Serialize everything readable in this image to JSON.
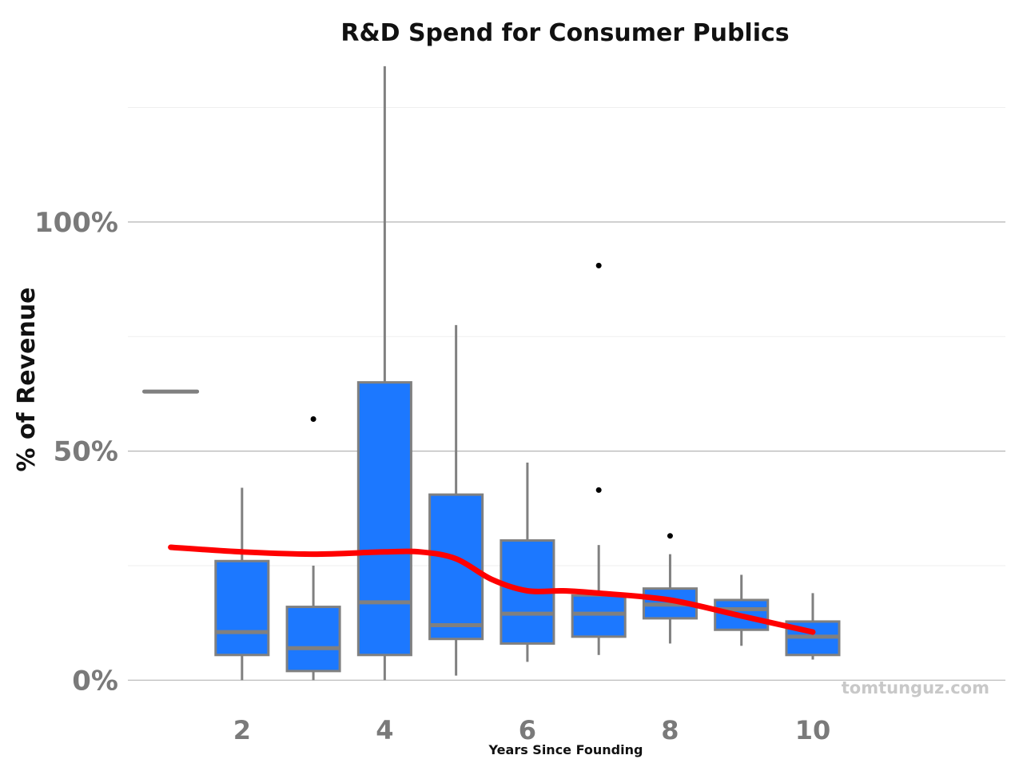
{
  "chart_data": {
    "type": "boxplot",
    "title": "R&D Spend for Consumer Publics",
    "xlabel": "Years Since Founding",
    "ylabel": "% of Revenue",
    "watermark": "tomtunguz.com",
    "x_ticks": [
      2,
      4,
      6,
      8,
      10
    ],
    "y_ticks": [
      0,
      50,
      100
    ],
    "y_tick_labels": [
      "0%",
      "50%",
      "100%"
    ],
    "xlim": [
      0.4,
      12.7
    ],
    "ylim": [
      -5,
      138
    ],
    "grid": "horizontal",
    "colors": {
      "box_fill": "#1c78ff",
      "box_stroke": "#808080",
      "trend": "#ff0000",
      "grid_major": "#b4b4b4",
      "grid_minor": "#efefef"
    },
    "boxes": [
      {
        "year": 1,
        "min": 63,
        "q1": 63,
        "median": 63,
        "q3": 63,
        "max": 63,
        "outliers": []
      },
      {
        "year": 2,
        "min": 0,
        "q1": 5.5,
        "median": 10.5,
        "q3": 26,
        "max": 42,
        "outliers": []
      },
      {
        "year": 3,
        "min": 0,
        "q1": 2,
        "median": 7,
        "q3": 16,
        "max": 25,
        "outliers": [
          57
        ]
      },
      {
        "year": 4,
        "min": 0,
        "q1": 5.5,
        "median": 17,
        "q3": 65,
        "max": 134,
        "outliers": []
      },
      {
        "year": 5,
        "min": 1,
        "q1": 9,
        "median": 12,
        "q3": 40.5,
        "max": 77.5,
        "outliers": []
      },
      {
        "year": 6,
        "min": 4,
        "q1": 8,
        "median": 14.5,
        "q3": 30.5,
        "max": 47.5,
        "outliers": []
      },
      {
        "year": 7,
        "min": 5.5,
        "q1": 9.5,
        "median": 14.5,
        "q3": 18.5,
        "max": 29.5,
        "outliers": [
          41.5,
          90.5
        ]
      },
      {
        "year": 8,
        "min": 8,
        "q1": 13.5,
        "median": 16.5,
        "q3": 20,
        "max": 27.5,
        "outliers": [
          31.5
        ]
      },
      {
        "year": 9,
        "min": 7.5,
        "q1": 11,
        "median": 15.5,
        "q3": 17.5,
        "max": 23,
        "outliers": []
      },
      {
        "year": 10,
        "min": 4.5,
        "q1": 5.5,
        "median": 9.5,
        "q3": 12.8,
        "max": 19,
        "outliers": []
      }
    ],
    "trend": {
      "name": "",
      "x": [
        1,
        2,
        3,
        4,
        4.5,
        5,
        5.5,
        6,
        6.5,
        7,
        8,
        9,
        10
      ],
      "y": [
        29,
        28,
        27.5,
        28,
        28,
        26.5,
        22,
        19.5,
        19.5,
        19,
        17.5,
        14,
        10.5
      ]
    }
  }
}
